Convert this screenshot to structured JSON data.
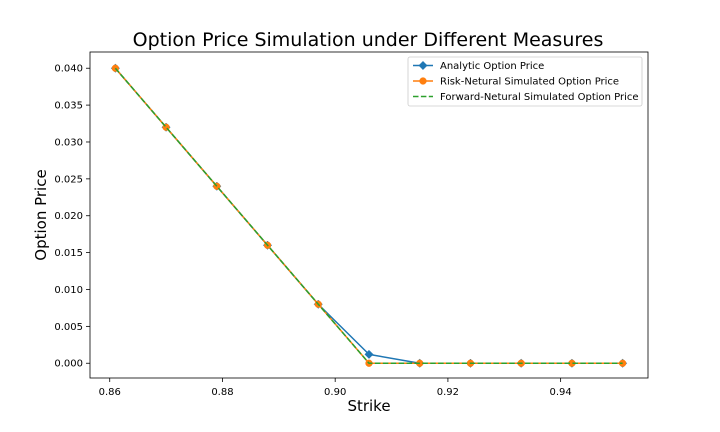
{
  "chart_data": {
    "type": "line",
    "title": "Option Price Simulation under Different Measures",
    "xlabel": "Strike",
    "ylabel": "Option Price",
    "xlim": [
      0.8565,
      0.9555
    ],
    "ylim": [
      -0.002,
      0.0422
    ],
    "xticks": [
      0.86,
      0.88,
      0.9,
      0.92,
      0.94
    ],
    "xtick_labels": [
      "0.86",
      "0.88",
      "0.90",
      "0.92",
      "0.94"
    ],
    "yticks": [
      0.0,
      0.005,
      0.01,
      0.015,
      0.02,
      0.025,
      0.03,
      0.035,
      0.04
    ],
    "ytick_labels": [
      "0.000",
      "0.005",
      "0.010",
      "0.015",
      "0.020",
      "0.025",
      "0.030",
      "0.035",
      "0.040"
    ],
    "grid": false,
    "legend_position": "top-right",
    "x": [
      0.861,
      0.87,
      0.879,
      0.888,
      0.897,
      0.906,
      0.915,
      0.924,
      0.933,
      0.942,
      0.951
    ],
    "series": [
      {
        "name": "Analytic Option Price",
        "color": "#1f77b4",
        "marker": "diamond",
        "dash": "solid",
        "values": [
          0.04,
          0.032,
          0.024,
          0.016,
          0.008,
          0.0012,
          0.0,
          0.0,
          0.0,
          0.0,
          0.0
        ]
      },
      {
        "name": "Risk-Netural Simulated Option Price",
        "color": "#ff7f0e",
        "marker": "circle",
        "dash": "solid",
        "values": [
          0.04,
          0.032,
          0.024,
          0.016,
          0.008,
          0.0,
          0.0,
          0.0,
          0.0,
          0.0,
          0.0
        ]
      },
      {
        "name": "Forward-Netural Simulated Option Price",
        "color": "#2ca02c",
        "marker": "none",
        "dash": "dashed",
        "values": [
          0.04,
          0.032,
          0.024,
          0.016,
          0.008,
          0.0,
          0.0,
          0.0,
          0.0,
          0.0,
          0.0
        ]
      }
    ]
  }
}
